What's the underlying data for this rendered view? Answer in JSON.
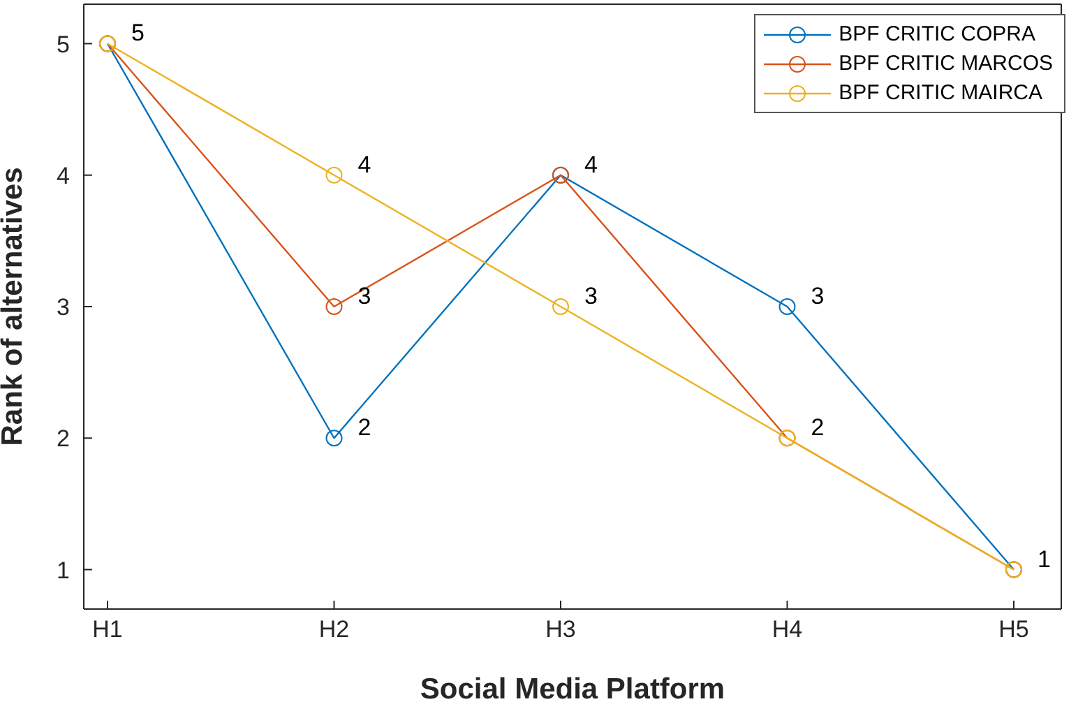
{
  "chart_data": {
    "type": "line",
    "xlabel": "Social Media Platform",
    "ylabel": "Rank of alternatives",
    "categories": [
      "H1",
      "H2",
      "H3",
      "H4",
      "H5"
    ],
    "ylim": [
      0.7,
      5.3
    ],
    "yticks": [
      1,
      2,
      3,
      4,
      5
    ],
    "grid": false,
    "legend": "top right",
    "marker": "circle",
    "line_style": "solid",
    "series": [
      {
        "name": "BPF CRITIC COPRA",
        "color": "#0072bd",
        "values": [
          5,
          2,
          4,
          3,
          1
        ],
        "value_labels": [
          "5",
          "2",
          "4",
          "3",
          "1"
        ]
      },
      {
        "name": "BPF CRITIC MARCOS",
        "color": "#d95319",
        "values": [
          5,
          3,
          4,
          2,
          1
        ],
        "value_labels": [
          null,
          "3",
          null,
          null,
          null
        ]
      },
      {
        "name": "BPF CRITIC MAIRCA",
        "color": "#edb120",
        "values": [
          5,
          4,
          3,
          2,
          1
        ],
        "value_labels": [
          null,
          "4",
          "3",
          "2",
          null
        ]
      }
    ]
  }
}
